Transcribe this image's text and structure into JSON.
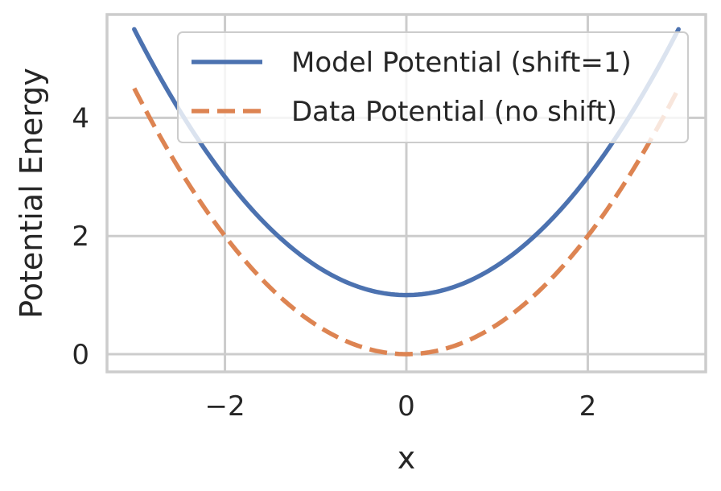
{
  "chart_data": {
    "type": "line",
    "title": "",
    "xlabel": "x",
    "ylabel": "Potential Energy",
    "xlim": [
      -3.3,
      3.3
    ],
    "ylim": [
      -0.3,
      5.75
    ],
    "xticks": [
      -2,
      0,
      2
    ],
    "yticks": [
      0,
      2,
      4
    ],
    "xtick_labels": [
      "−2",
      "0",
      "2"
    ],
    "ytick_labels": [
      "0",
      "2",
      "4"
    ],
    "grid": true,
    "legend_position": "top-right",
    "x_range": [
      -3,
      3
    ],
    "series": [
      {
        "name": "Model Potential (shift=1)",
        "color": "#4c72b0",
        "style": "solid",
        "x": [
          -3,
          -2.5,
          -2,
          -1.5,
          -1,
          -0.5,
          0,
          0.5,
          1,
          1.5,
          2,
          2.5,
          3
        ],
        "y": [
          5.5,
          4.125,
          3.0,
          2.125,
          1.5,
          1.125,
          1.0,
          1.125,
          1.5,
          2.125,
          3.0,
          4.125,
          5.5
        ]
      },
      {
        "name": "Data Potential (no shift)",
        "color": "#dd8452",
        "style": "dashed",
        "x": [
          -3,
          -2.5,
          -2,
          -1.5,
          -1,
          -0.5,
          0,
          0.5,
          1,
          1.5,
          2,
          2.5,
          3
        ],
        "y": [
          4.5,
          3.125,
          2.0,
          1.125,
          0.5,
          0.125,
          0.0,
          0.125,
          0.5,
          1.125,
          2.0,
          3.125,
          4.5
        ]
      }
    ]
  }
}
